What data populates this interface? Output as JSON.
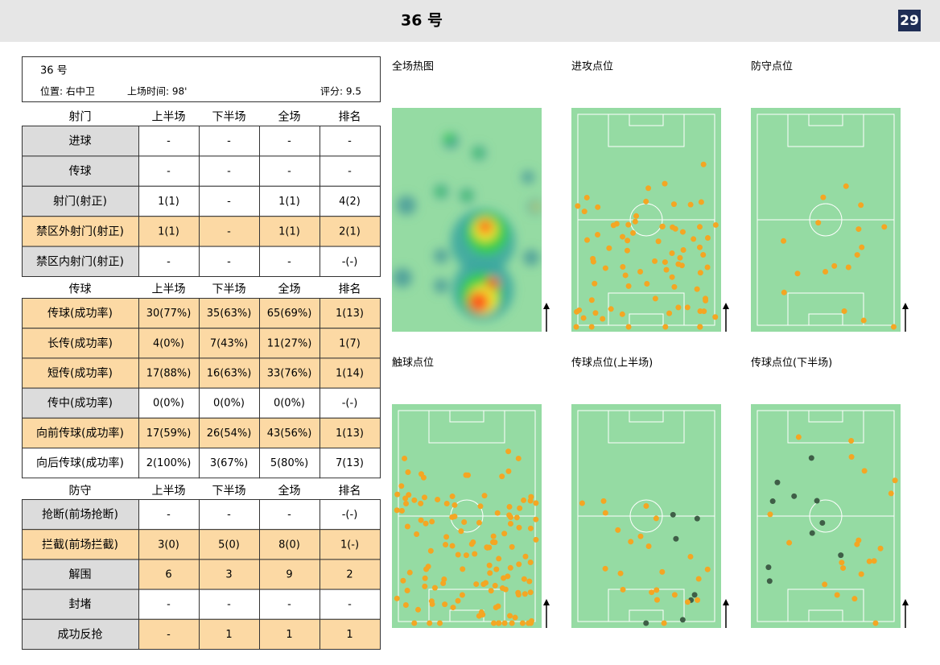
{
  "header": {
    "title": "36 号",
    "page": "29"
  },
  "player": {
    "name": "36 号",
    "position": "位置: 右中卫",
    "time": "上场时间: 98'",
    "rating": "评分: 9.5"
  },
  "tables": [
    {
      "header": [
        "射门",
        "上半场",
        "下半场",
        "全场",
        "排名"
      ],
      "rows": [
        [
          "进球",
          "-",
          "-",
          "-",
          "-"
        ],
        [
          "传球",
          "-",
          "-",
          "-",
          "-"
        ],
        [
          "射门(射正)",
          "1(1)",
          "-",
          "1(1)",
          "4(2)"
        ],
        [
          "禁区外射门(射正)",
          "1(1)",
          "-",
          "1(1)",
          "2(1)"
        ],
        [
          "禁区内射门(射正)",
          "-",
          "-",
          "-",
          "-(-)"
        ]
      ],
      "label_fill": [
        "#dcdcdc",
        "#dcdcdc",
        "#dcdcdc",
        "#fcd9a4",
        "#dcdcdc"
      ],
      "value_fill": [
        "#ffffff",
        "#ffffff",
        "#ffffff",
        "#fcd9a4",
        "#ffffff"
      ]
    },
    {
      "header": [
        "传球",
        "上半场",
        "下半场",
        "全场",
        "排名"
      ],
      "rows": [
        [
          "传球(成功率)",
          "30(77%)",
          "35(63%)",
          "65(69%)",
          "1(13)"
        ],
        [
          "长传(成功率)",
          "4(0%)",
          "7(43%)",
          "11(27%)",
          "1(7)"
        ],
        [
          "短传(成功率)",
          "17(88%)",
          "16(63%)",
          "33(76%)",
          "1(14)"
        ],
        [
          "传中(成功率)",
          "0(0%)",
          "0(0%)",
          "0(0%)",
          "-(-)"
        ],
        [
          "向前传球(成功率)",
          "17(59%)",
          "26(54%)",
          "43(56%)",
          "1(13)"
        ],
        [
          "向后传球(成功率)",
          "2(100%)",
          "3(67%)",
          "5(80%)",
          "7(13)"
        ]
      ],
      "label_fill": [
        "#fcd9a4",
        "#fcd9a4",
        "#fcd9a4",
        "#dcdcdc",
        "#fcd9a4",
        "#ffffff"
      ],
      "value_fill": [
        "#fcd9a4",
        "#fcd9a4",
        "#fcd9a4",
        "#ffffff",
        "#fcd9a4",
        "#ffffff"
      ]
    },
    {
      "header": [
        "防守",
        "上半场",
        "下半场",
        "全场",
        "排名"
      ],
      "rows": [
        [
          "抢断(前场抢断)",
          "-",
          "-",
          "-",
          "-(-)"
        ],
        [
          "拦截(前场拦截)",
          "3(0)",
          "5(0)",
          "8(0)",
          "1(-)"
        ],
        [
          "解围",
          "6",
          "3",
          "9",
          "2"
        ],
        [
          "封堵",
          "-",
          "-",
          "-",
          "-"
        ],
        [
          "成功反抢",
          "-",
          "1",
          "1",
          "1"
        ]
      ],
      "label_fill": [
        "#dcdcdc",
        "#fcd9a4",
        "#dcdcdc",
        "#dcdcdc",
        "#dcdcdc"
      ],
      "value_fill": [
        "#ffffff",
        "#fcd9a4",
        "#fcd9a4",
        "#ffffff",
        "#fcd9a4"
      ]
    }
  ],
  "pitches": [
    "全场热图",
    "进攻点位",
    "防守点位",
    "触球点位",
    "传球点位(上半场)",
    "传球点位(下半场)"
  ]
}
